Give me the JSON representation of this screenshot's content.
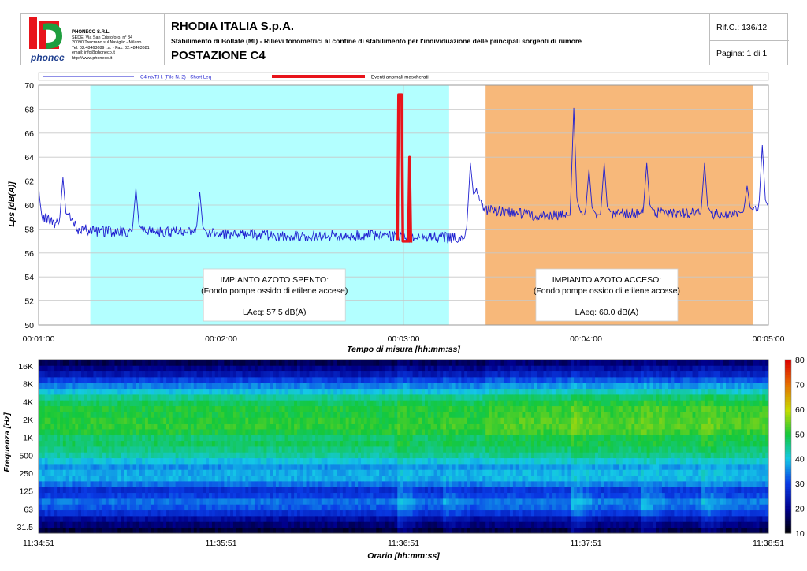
{
  "header": {
    "company": {
      "name": "PHONECO S.R.L.",
      "lines": [
        "SEDE: Via San Cristoforo, n° 84",
        "20090 Trezzano sul Naviglio - Milano",
        "Tel: 02.48463689 r.a. - Fax: 02.48463681",
        "email: info@phoneco.it",
        "http://www.phoneco.it"
      ],
      "logo_text": "phoneco"
    },
    "title": "RHODIA ITALIA S.p.A.",
    "subtitle": "Stabilimento di Bollate (MI) - Rilievi fonometrici al confine di stabilimento per l'individuazione delle principali sorgenti di rumore",
    "station": "POSTAZIONE C4",
    "ref": "Rif.C.: 136/12",
    "page": "Pagina: 1 di 1"
  },
  "chart_data": [
    {
      "type": "line",
      "legend": [
        {
          "label": "C4IntvT.H. (File N. 2) - Short Leq",
          "color": "#1f1fd0"
        },
        {
          "label": "Eventi anomali mascherati",
          "color": "#e8141b"
        }
      ],
      "ylabel": "Lps [dB(A)]",
      "xlabel": "Tempo di misura [hh:mm:ss]",
      "ylim": [
        50,
        70
      ],
      "yticks": [
        50,
        52,
        54,
        56,
        58,
        60,
        62,
        64,
        66,
        68,
        70
      ],
      "xlim_seconds": [
        60,
        300
      ],
      "xticks": [
        "00:01:00",
        "00:02:00",
        "00:03:00",
        "00:04:00",
        "00:05:00"
      ],
      "grid": true,
      "regions": [
        {
          "start": "00:01:17",
          "end": "00:03:15",
          "color": "#b3ffff",
          "label": "IMPIANTO AZOTO SPENTO:",
          "sublabel": "(Fondo pompe ossido di etilene accese)",
          "laeq": "LAeq: 57.5 dB(A)"
        },
        {
          "start": "00:03:27",
          "end": "00:04:55",
          "color": "#f7b87a",
          "label": "IMPIANTO AZOTO ACCESO:",
          "sublabel": "(Fondo pompe ossido di etilene accese)",
          "laeq": "LAeq: 60.0 dB(A)"
        }
      ],
      "series_base": [
        {
          "t": "00:01:00",
          "lps": 61.8
        },
        {
          "t": "00:01:01",
          "lps": 59.0
        },
        {
          "t": "00:01:05",
          "lps": 58.5
        },
        {
          "t": "00:01:08",
          "lps": 58.3
        },
        {
          "t": "00:01:10",
          "lps": 59.0
        },
        {
          "t": "00:01:13",
          "lps": 58.0
        },
        {
          "t": "00:01:20",
          "lps": 57.8
        },
        {
          "t": "00:01:40",
          "lps": 57.8
        },
        {
          "t": "00:02:00",
          "lps": 57.6
        },
        {
          "t": "00:02:20",
          "lps": 57.4
        },
        {
          "t": "00:02:40",
          "lps": 57.5
        },
        {
          "t": "00:02:55",
          "lps": 57.4
        },
        {
          "t": "00:03:14",
          "lps": 57.3
        },
        {
          "t": "00:03:20",
          "lps": 57.2
        },
        {
          "t": "00:03:22",
          "lps": 59.5
        },
        {
          "t": "00:03:24",
          "lps": 61.0
        },
        {
          "t": "00:03:27",
          "lps": 59.6
        },
        {
          "t": "00:03:45",
          "lps": 59.1
        },
        {
          "t": "00:04:05",
          "lps": 59.2
        },
        {
          "t": "00:04:25",
          "lps": 59.4
        },
        {
          "t": "00:04:45",
          "lps": 59.2
        },
        {
          "t": "00:05:00",
          "lps": 59.6
        }
      ],
      "peaks": [
        {
          "t": "00:01:08",
          "lps": 62.3
        },
        {
          "t": "00:01:32",
          "lps": 61.4
        },
        {
          "t": "00:01:53",
          "lps": 61.1
        },
        {
          "t": "00:03:22",
          "lps": 63.5
        },
        {
          "t": "00:03:56",
          "lps": 68.1
        },
        {
          "t": "00:04:01",
          "lps": 63.0
        },
        {
          "t": "00:04:06",
          "lps": 63.5
        },
        {
          "t": "00:04:20",
          "lps": 63.5
        },
        {
          "t": "00:04:39",
          "lps": 63.5
        },
        {
          "t": "00:04:53",
          "lps": 61.6
        },
        {
          "t": "00:04:58",
          "lps": 65.0
        }
      ],
      "masked_events": [
        {
          "t": "00:02:59",
          "lps": 69.2
        },
        {
          "t": "00:03:02",
          "lps": 64.0
        }
      ]
    },
    {
      "type": "heatmap",
      "ylabel": "Frequenza [Hz]",
      "xlabel": "Orario [hh:mm:ss]",
      "yticks": [
        "16K",
        "8K",
        "4K",
        "2K",
        "1K",
        "500",
        "250",
        "125",
        "63",
        "31.5"
      ],
      "xticks": [
        "11:34:51",
        "11:35:51",
        "11:36:51",
        "11:37:51",
        "11:38:51"
      ],
      "colorbar": {
        "min": 10,
        "max": 80,
        "ticks": [
          10,
          20,
          30,
          40,
          50,
          60,
          70,
          80
        ]
      },
      "band_levels_off": [
        14,
        18,
        22,
        28,
        32,
        34,
        30,
        28,
        34,
        38,
        38,
        36,
        40,
        44,
        46,
        48,
        47,
        50,
        51,
        51,
        50,
        50,
        48,
        45,
        40,
        35,
        30,
        24,
        20,
        16
      ],
      "band_levels_on": [
        15,
        19,
        23,
        29,
        33,
        35,
        31,
        29,
        35,
        39,
        39,
        37,
        41,
        45,
        47,
        49,
        49,
        52,
        53,
        53,
        52,
        52,
        50,
        47,
        42,
        37,
        32,
        26,
        22,
        18
      ],
      "events": [
        {
          "t": "11:36:50",
          "level_add": 6
        },
        {
          "t": "11:37:05",
          "level_add": 4
        },
        {
          "t": "11:37:47",
          "level_add": 6
        },
        {
          "t": "11:38:10",
          "level_add": 5
        },
        {
          "t": "11:38:30",
          "level_add": 5
        }
      ]
    }
  ]
}
